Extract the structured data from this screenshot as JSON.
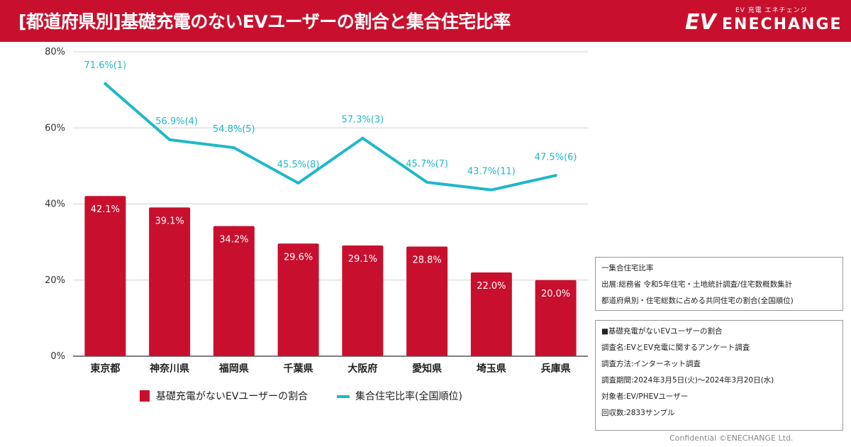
{
  "header": {
    "title": "[都道府県別]基礎充電のないEVユーザーの割合と集合住宅比率",
    "logo_sub": "EV 充電 エネチェンジ",
    "logo_ev": "EV",
    "logo_main": "ENECHANGE"
  },
  "colors": {
    "brand": "#c8102e",
    "bar": "#c8102e",
    "line": "#1fb8c9"
  },
  "chart_data": {
    "type": "bar+line",
    "categories": [
      "東京都",
      "神奈川県",
      "福岡県",
      "千葉県",
      "大阪府",
      "愛知県",
      "埼玉県",
      "兵庫県"
    ],
    "ylim": [
      0,
      80
    ],
    "yticks": [
      0,
      20,
      40,
      60,
      80
    ],
    "ytick_labels": [
      "0%",
      "20%",
      "40%",
      "60%",
      "80%"
    ],
    "series": [
      {
        "name": "基礎充電がないEVユーザーの割合",
        "type": "bar",
        "values": [
          42.1,
          39.1,
          34.2,
          29.6,
          29.1,
          28.8,
          22.0,
          20.0
        ],
        "labels": [
          "42.1%",
          "39.1%",
          "34.2%",
          "29.6%",
          "29.1%",
          "28.8%",
          "22.0%",
          "20.0%"
        ]
      },
      {
        "name": "集合住宅比率(全国順位)",
        "type": "line",
        "values": [
          71.6,
          56.9,
          54.8,
          45.5,
          57.3,
          45.7,
          43.7,
          47.5
        ],
        "labels": [
          "71.6%(1)",
          "56.9%(4)",
          "54.8%(5)",
          "45.5%(8)",
          "57.3%(3)",
          "45.7%(7)",
          "43.7%(11)",
          "47.5%(6)"
        ]
      }
    ]
  },
  "info1": {
    "line1": "一集合住宅比率",
    "line2": "出展:総務省 令和5年住宅・土地統計調査/住宅数概数集計",
    "line3": "都道府県別・住宅総数に占める共同住宅の割合(全国順位)"
  },
  "info2": {
    "line1": "■基礎充電がないEVユーザーの割合",
    "line2": "調査名:EVとEV充電に関するアンケート調査",
    "line3": "調査方法:インターネット調査",
    "line4": "調査期間:2024年3月5日(火)〜2024年3月20日(水)",
    "line5": "対象者:EV/PHEVユーザー",
    "line6": "回収数:2833サンプル"
  },
  "footer": {
    "text": "Confidential ©ENECHANGE Ltd."
  }
}
